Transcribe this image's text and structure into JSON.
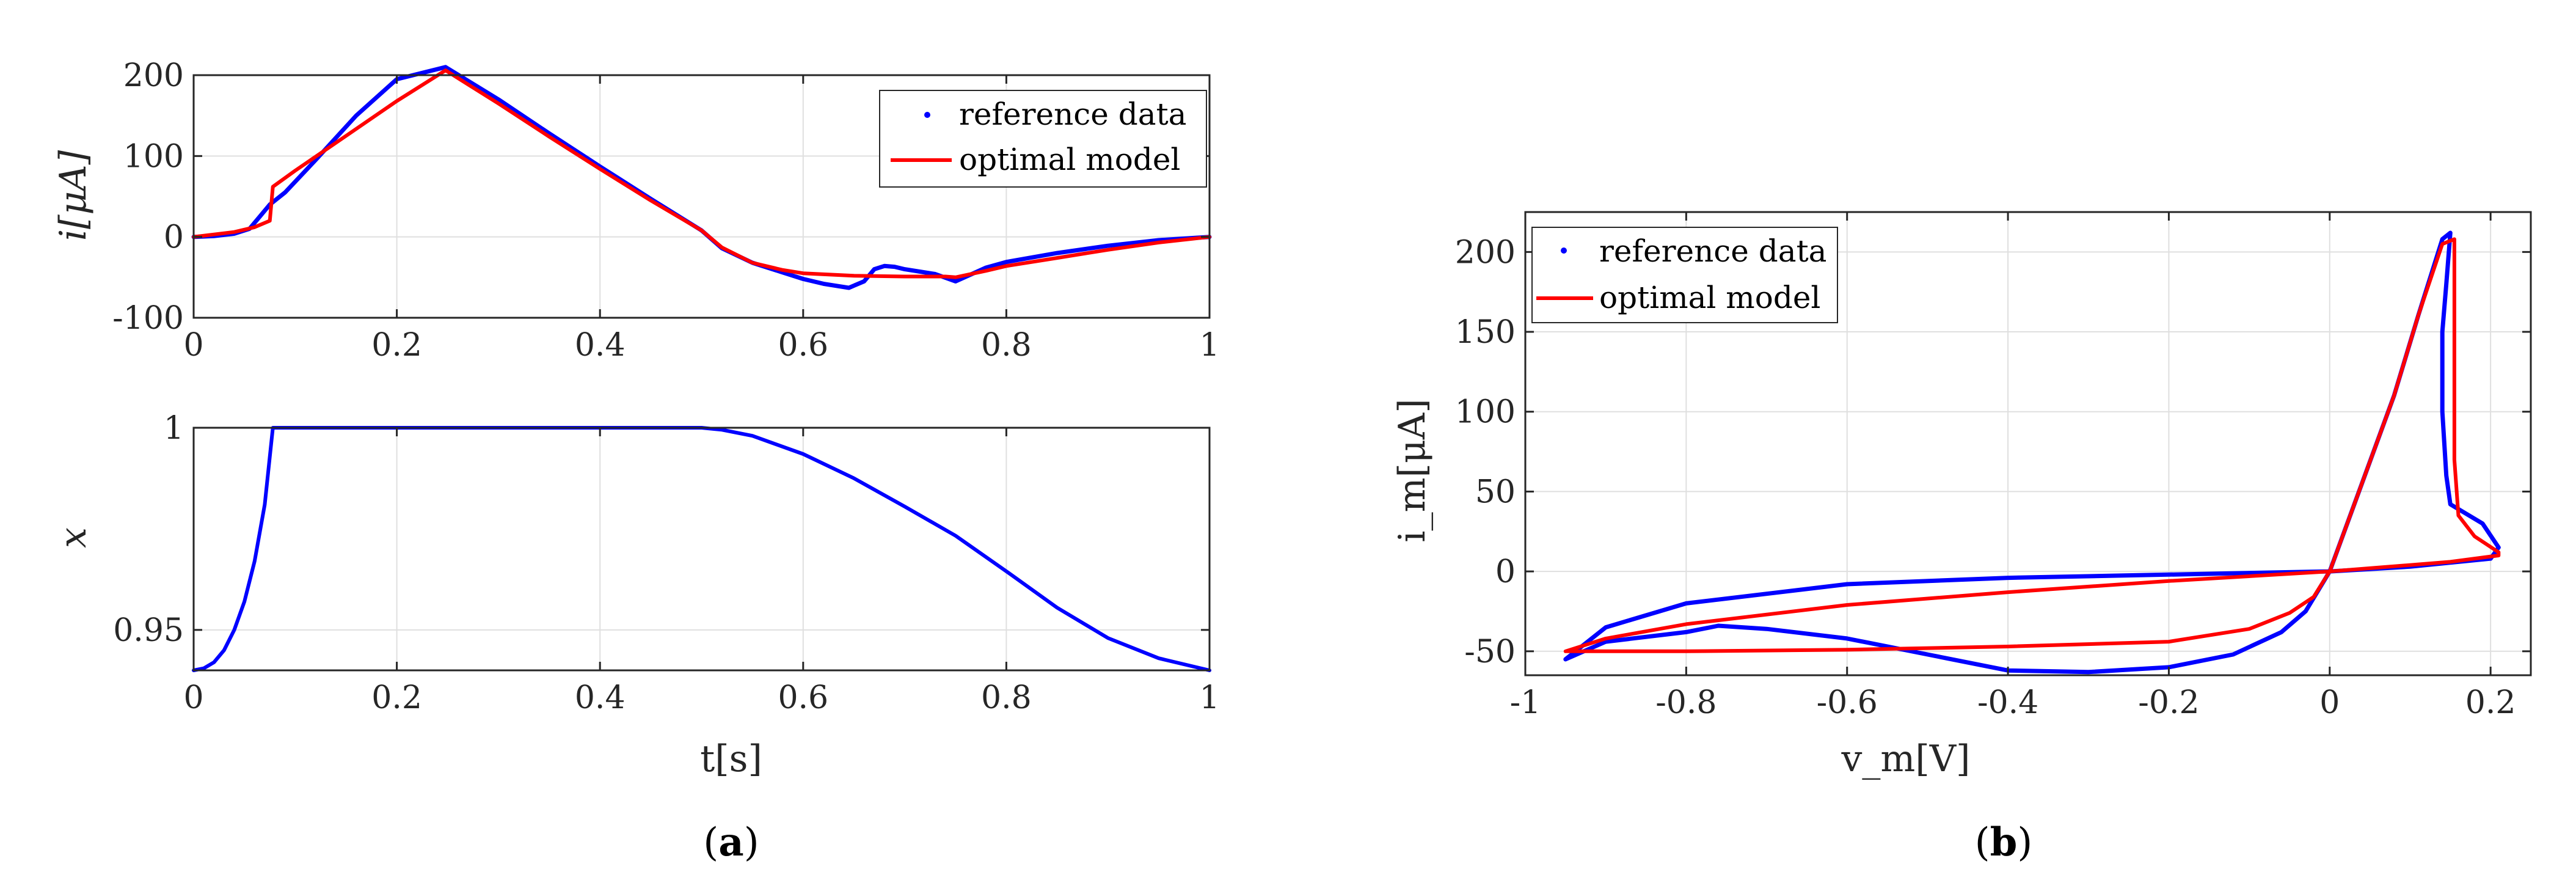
{
  "chart_data": [
    {
      "id": "a-top",
      "type": "line",
      "panel": "a",
      "xlabel": "",
      "ylabel": "i[μA]",
      "xlim": [
        0,
        1
      ],
      "ylim": [
        -100,
        200
      ],
      "xticks": [
        0,
        0.2,
        0.4,
        0.6,
        0.8,
        1
      ],
      "xtick_labels": [
        "0",
        "0.2",
        "0.4",
        "0.6",
        "0.8",
        "1"
      ],
      "yticks": [
        -100,
        0,
        100,
        200
      ],
      "ytick_labels": [
        "-100",
        "0",
        "100",
        "200"
      ],
      "grid": true,
      "legend_position": "top-right",
      "series": [
        {
          "name": "reference data",
          "style": "dots",
          "color": "#0000ff",
          "x": [
            0,
            0.02,
            0.04,
            0.055,
            0.065,
            0.075,
            0.09,
            0.12,
            0.16,
            0.2,
            0.248,
            0.3,
            0.35,
            0.4,
            0.45,
            0.5,
            0.52,
            0.55,
            0.58,
            0.6,
            0.62,
            0.645,
            0.66,
            0.67,
            0.68,
            0.69,
            0.7,
            0.71,
            0.73,
            0.75,
            0.78,
            0.8,
            0.85,
            0.9,
            0.95,
            1.0
          ],
          "y": [
            0,
            1,
            4,
            10,
            25,
            40,
            55,
            95,
            150,
            195,
            210,
            170,
            128,
            87,
            47,
            8,
            -14,
            -32,
            -44,
            -52,
            -58,
            -63,
            -55,
            -40,
            -36,
            -37,
            -40,
            -42,
            -46,
            -55,
            -38,
            -31,
            -20,
            -11,
            -4,
            0
          ]
        },
        {
          "name": "optimal model",
          "style": "line",
          "color": "#ff0000",
          "x": [
            0,
            0.02,
            0.04,
            0.06,
            0.075,
            0.078,
            0.1,
            0.15,
            0.2,
            0.248,
            0.3,
            0.35,
            0.4,
            0.45,
            0.5,
            0.52,
            0.55,
            0.58,
            0.6,
            0.65,
            0.7,
            0.74,
            0.75,
            0.78,
            0.8,
            0.85,
            0.9,
            0.95,
            1.0
          ],
          "y": [
            0,
            3,
            6,
            12,
            20,
            62,
            82,
            125,
            168,
            206,
            165,
            124,
            84,
            45,
            8,
            -13,
            -32,
            -41,
            -45,
            -48,
            -49,
            -49,
            -50,
            -42,
            -36,
            -26,
            -16,
            -7,
            0
          ]
        }
      ]
    },
    {
      "id": "a-bottom",
      "type": "line",
      "panel": "a",
      "xlabel": "t[s]",
      "ylabel": "x",
      "xlim": [
        0,
        1
      ],
      "ylim": [
        0.94,
        1
      ],
      "xticks": [
        0,
        0.2,
        0.4,
        0.6,
        0.8,
        1
      ],
      "xtick_labels": [
        "0",
        "0.2",
        "0.4",
        "0.6",
        "0.8",
        "1"
      ],
      "yticks": [
        0.95,
        1
      ],
      "ytick_labels": [
        "0.95",
        "1"
      ],
      "grid": true,
      "series": [
        {
          "name": "x",
          "style": "line",
          "color": "#0000ff",
          "x": [
            0,
            0.01,
            0.02,
            0.03,
            0.04,
            0.05,
            0.06,
            0.07,
            0.078,
            0.1,
            0.2,
            0.3,
            0.4,
            0.5,
            0.52,
            0.55,
            0.6,
            0.65,
            0.7,
            0.75,
            0.8,
            0.85,
            0.9,
            0.95,
            1.0
          ],
          "y": [
            0.94,
            0.9405,
            0.942,
            0.945,
            0.95,
            0.957,
            0.967,
            0.981,
            1.0,
            1.0,
            1.0,
            1.0,
            1.0,
            1.0,
            0.9995,
            0.998,
            0.9935,
            0.9875,
            0.9805,
            0.9733,
            0.9645,
            0.9555,
            0.948,
            0.943,
            0.94
          ]
        }
      ]
    },
    {
      "id": "b",
      "type": "line",
      "panel": "b",
      "xlabel": "v_m[V]",
      "ylabel": "i_m[μA]",
      "xlim": [
        -1,
        0.25
      ],
      "ylim": [
        -65,
        225
      ],
      "xticks": [
        -1,
        -0.8,
        -0.6,
        -0.4,
        -0.2,
        0,
        0.2
      ],
      "xtick_labels": [
        "-1",
        "-0.8",
        "-0.6",
        "-0.4",
        "-0.2",
        "0",
        "0.2"
      ],
      "yticks": [
        -50,
        0,
        50,
        100,
        150,
        200
      ],
      "ytick_labels": [
        "-50",
        "0",
        "50",
        "100",
        "150",
        "200"
      ],
      "grid": true,
      "legend_position": "top-left",
      "series": [
        {
          "name": "reference data",
          "style": "dots",
          "color": "#0000ff",
          "x": [
            0,
            0.04,
            0.08,
            0.11,
            0.14,
            0.15,
            0.145,
            0.14,
            0.14,
            0.145,
            0.15,
            0.19,
            0.21,
            0.2,
            0.1,
            0,
            -0.2,
            -0.4,
            -0.6,
            -0.8,
            -0.9,
            -0.95,
            -0.9,
            -0.8,
            -0.76,
            -0.7,
            -0.6,
            -0.5,
            -0.4,
            -0.3,
            -0.2,
            -0.12,
            -0.06,
            -0.03,
            0
          ],
          "y": [
            0,
            55,
            110,
            160,
            208,
            212,
            180,
            150,
            100,
            60,
            42,
            30,
            15,
            8,
            3,
            0,
            -2,
            -4,
            -8,
            -20,
            -35,
            -55,
            -44,
            -38,
            -34,
            -36,
            -42,
            -52,
            -62,
            -63,
            -60,
            -52,
            -38,
            -25,
            0
          ]
        },
        {
          "name": "optimal model",
          "style": "line",
          "color": "#ff0000",
          "x": [
            0,
            0.04,
            0.08,
            0.11,
            0.14,
            0.155,
            0.155,
            0.155,
            0.155,
            0.16,
            0.18,
            0.21,
            0.21,
            0.15,
            0.05,
            0,
            -0.2,
            -0.4,
            -0.6,
            -0.8,
            -0.9,
            -0.95,
            -0.9,
            -0.8,
            -0.6,
            -0.4,
            -0.2,
            -0.1,
            -0.05,
            -0.02,
            0
          ],
          "y": [
            0,
            55,
            110,
            160,
            205,
            208,
            180,
            140,
            70,
            35,
            22,
            12,
            10,
            6,
            2,
            0,
            -6,
            -13,
            -21,
            -33,
            -42,
            -50,
            -50,
            -50,
            -49,
            -47,
            -44,
            -36,
            -26,
            -16,
            0
          ]
        }
      ]
    }
  ],
  "legend_labels": {
    "reference": "reference data",
    "model": "optimal model"
  },
  "panel_labels": {
    "a": "a",
    "b": "b"
  },
  "colors": {
    "reference": "#0000ff",
    "model": "#ff0000",
    "grid": "#dfdfdf",
    "axis": "#262626"
  }
}
